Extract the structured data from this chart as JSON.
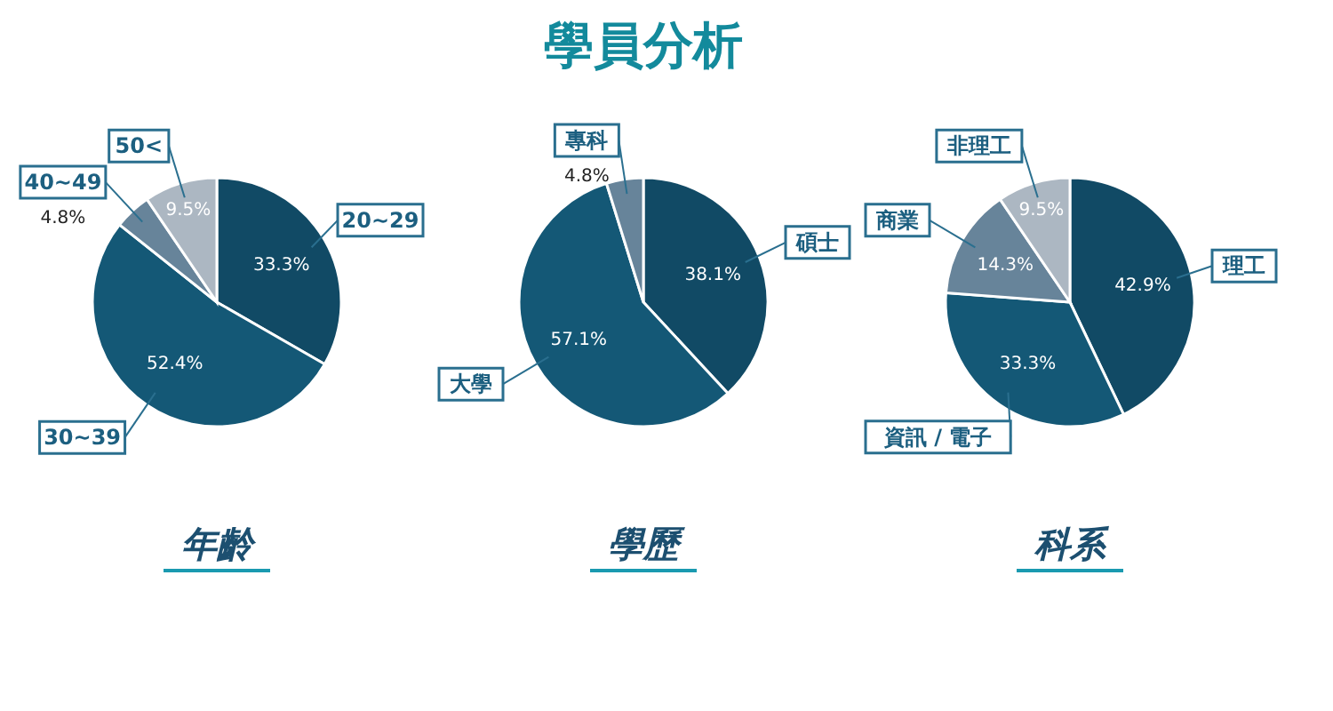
{
  "chart_data": [
    {
      "type": "pie",
      "xlabel": "年齡",
      "legend": false,
      "categories": [
        "20~29",
        "30~39",
        "40~49",
        "50<"
      ],
      "values": [
        33.3,
        52.4,
        4.8,
        9.5
      ],
      "value_labels": [
        "33.3%",
        "52.4%",
        "4.8%",
        "9.5%"
      ],
      "colors": [
        "#114a65",
        "#145876",
        "#67849a",
        "#acb7c2"
      ]
    },
    {
      "type": "pie",
      "title": "學員分析",
      "xlabel": "學歷",
      "legend": false,
      "categories": [
        "碩士",
        "大學",
        "專科"
      ],
      "values": [
        38.1,
        57.1,
        4.8
      ],
      "value_labels": [
        "38.1%",
        "57.1%",
        "4.8%"
      ],
      "colors": [
        "#114a65",
        "#145876",
        "#67849a"
      ]
    },
    {
      "type": "pie",
      "xlabel": "科系",
      "legend": false,
      "categories": [
        "理工",
        "資訊 / 電子",
        "商業",
        "非理工"
      ],
      "values": [
        42.9,
        33.3,
        14.3,
        9.5
      ],
      "value_labels": [
        "42.9%",
        "33.3%",
        "14.3%",
        "9.5%"
      ],
      "colors": [
        "#114a65",
        "#145876",
        "#67849a",
        "#acb7c2"
      ]
    }
  ]
}
